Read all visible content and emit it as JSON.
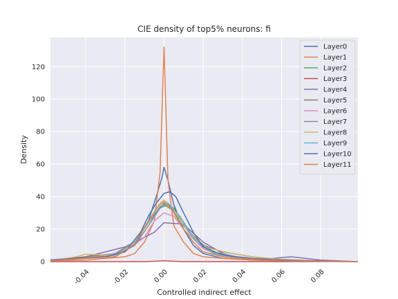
{
  "chart_data": {
    "type": "line",
    "title": "CIE density of top5% neurons: fi",
    "xlabel": "Controlled indirect effect",
    "ylabel": "Density",
    "xlim": [
      -0.058,
      0.099
    ],
    "ylim": [
      0,
      138
    ],
    "xticks": [
      -0.04,
      -0.02,
      0.0,
      0.02,
      0.04,
      0.06,
      0.08
    ],
    "xtick_labels": [
      "-0.04",
      "-0.02",
      "0.00",
      "0.02",
      "0.04",
      "0.06",
      "0.08"
    ],
    "yticks": [
      0,
      20,
      40,
      60,
      80,
      100,
      120
    ],
    "ytick_labels": [
      "0",
      "20",
      "40",
      "60",
      "80",
      "100",
      "120"
    ],
    "grid": true,
    "legend_position": "top-right",
    "series": [
      {
        "name": "Layer0",
        "color": "#4c72b0",
        "x": [
          -0.058,
          -0.04,
          -0.025,
          -0.015,
          -0.008,
          -0.004,
          -0.001,
          0.0,
          0.002,
          0.005,
          0.01,
          0.015,
          0.02,
          0.03,
          0.045,
          0.06,
          0.099
        ],
        "y": [
          1,
          2,
          3,
          10,
          25,
          40,
          52,
          58,
          50,
          35,
          20,
          10,
          5,
          2,
          1,
          0.5,
          0
        ]
      },
      {
        "name": "Layer1",
        "color": "#dd8452",
        "x": [
          -0.058,
          -0.04,
          -0.03,
          -0.02,
          -0.015,
          -0.01,
          -0.005,
          -0.002,
          0.0,
          0.002,
          0.005,
          0.01,
          0.015,
          0.02,
          0.03,
          0.045,
          0.06,
          0.08,
          0.099
        ],
        "y": [
          0.5,
          1,
          2,
          3,
          5,
          12,
          25,
          55,
          132,
          50,
          22,
          12,
          5,
          3,
          2,
          1,
          0.5,
          0.2,
          0
        ]
      },
      {
        "name": "Layer2",
        "color": "#55a868",
        "x": [
          -0.058,
          -0.04,
          -0.025,
          -0.015,
          -0.008,
          -0.003,
          0.0,
          0.004,
          0.01,
          0.02,
          0.03,
          0.045,
          0.06,
          0.099
        ],
        "y": [
          0.5,
          2,
          4,
          12,
          25,
          32,
          35,
          32,
          22,
          8,
          3,
          1.5,
          0.5,
          0
        ]
      },
      {
        "name": "Layer3",
        "color": "#c44e52",
        "x": [
          -0.058,
          -0.04,
          -0.02,
          -0.01,
          -0.005,
          0.0,
          0.005,
          0.01,
          0.03,
          0.06,
          0.099
        ],
        "y": [
          0,
          0,
          0,
          0,
          0.2,
          0.5,
          0.2,
          0,
          0,
          0,
          0
        ]
      },
      {
        "name": "Layer4",
        "color": "#8172b3",
        "x": [
          -0.058,
          -0.04,
          -0.02,
          -0.005,
          0.0,
          0.01,
          0.02,
          0.03,
          0.04,
          0.05,
          0.065,
          0.08,
          0.099
        ],
        "y": [
          0.5,
          3,
          9,
          18,
          24,
          23,
          12,
          5,
          2,
          1.5,
          3,
          1,
          0
        ]
      },
      {
        "name": "Layer5",
        "color": "#937860",
        "x": [
          -0.058,
          -0.04,
          -0.025,
          -0.015,
          -0.008,
          0.0,
          0.005,
          0.01,
          0.02,
          0.03,
          0.045,
          0.06,
          0.099
        ],
        "y": [
          1,
          3,
          5,
          12,
          24,
          36,
          33,
          22,
          10,
          6,
          3,
          1,
          0
        ]
      },
      {
        "name": "Layer6",
        "color": "#da8bc3",
        "x": [
          -0.058,
          -0.04,
          -0.02,
          -0.01,
          -0.005,
          0.0,
          0.005,
          0.01,
          0.02,
          0.03,
          0.045,
          0.06,
          0.099
        ],
        "y": [
          0.5,
          2,
          6,
          15,
          25,
          30,
          28,
          20,
          8,
          3,
          1.5,
          0.5,
          0
        ]
      },
      {
        "name": "Layer7",
        "color": "#8c8c8c",
        "x": [
          -0.058,
          -0.04,
          -0.025,
          -0.015,
          -0.008,
          -0.002,
          0.002,
          0.008,
          0.015,
          0.025,
          0.04,
          0.06,
          0.099
        ],
        "y": [
          1,
          2,
          4,
          10,
          22,
          33,
          35,
          28,
          15,
          6,
          2,
          0.5,
          0
        ]
      },
      {
        "name": "Layer8",
        "color": "#ccb974",
        "x": [
          -0.058,
          -0.045,
          -0.04,
          -0.025,
          -0.015,
          -0.008,
          -0.002,
          0.0,
          0.004,
          0.01,
          0.02,
          0.035,
          0.045,
          0.06,
          0.075,
          0.099
        ],
        "y": [
          0.5,
          3,
          4.5,
          4,
          12,
          25,
          36,
          38,
          34,
          22,
          9,
          5,
          3,
          1.5,
          0.5,
          0
        ]
      },
      {
        "name": "Layer9",
        "color": "#64b5cd",
        "x": [
          -0.058,
          -0.04,
          -0.025,
          -0.015,
          -0.008,
          -0.002,
          0.002,
          0.008,
          0.015,
          0.025,
          0.04,
          0.06,
          0.099
        ],
        "y": [
          1,
          2,
          4,
          12,
          24,
          34,
          36,
          28,
          14,
          5,
          2,
          0.5,
          0
        ]
      },
      {
        "name": "Layer10",
        "color": "#4c72b0",
        "x": [
          -0.058,
          -0.045,
          -0.03,
          -0.02,
          -0.012,
          -0.008,
          -0.004,
          0.0,
          0.003,
          0.006,
          0.01,
          0.015,
          0.02,
          0.03,
          0.045,
          0.06,
          0.099
        ],
        "y": [
          1,
          2,
          3,
          6,
          18,
          28,
          36,
          42,
          43,
          40,
          30,
          18,
          9,
          4,
          2,
          1,
          0
        ]
      },
      {
        "name": "Layer11",
        "color": "#dd8452",
        "x": [
          -0.058,
          -0.04,
          -0.025,
          -0.015,
          -0.008,
          -0.003,
          0.0,
          0.004,
          0.01,
          0.015,
          0.02,
          0.03,
          0.045,
          0.06,
          0.099
        ],
        "y": [
          0.5,
          2,
          3,
          11,
          25,
          34,
          37,
          32,
          20,
          12,
          6,
          3,
          1.5,
          0.5,
          0
        ]
      }
    ]
  }
}
